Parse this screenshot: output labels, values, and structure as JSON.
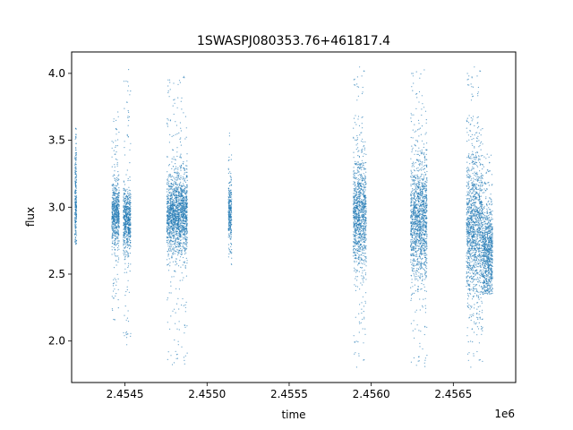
{
  "chart_data": {
    "type": "scatter",
    "title": "1SWASPJ080353.76+461817.4",
    "xlabel": "time",
    "ylabel": "flux",
    "x_offset_label": "1e6",
    "xlim": [
      2454175,
      2456880
    ],
    "ylim": [
      1.69,
      4.16
    ],
    "xticks": [
      2454500,
      2455000,
      2455500,
      2456000,
      2456500
    ],
    "xtick_labels": [
      "2.4545",
      "2.4550",
      "2.4555",
      "2.4560",
      "2.4565"
    ],
    "yticks": [
      2.0,
      2.5,
      3.0,
      3.5,
      4.0
    ],
    "ytick_labels": [
      "2.0",
      "2.5",
      "3.0",
      "3.5",
      "4.0"
    ],
    "grid": false,
    "point_color": "#1f77b4",
    "clusters": [
      {
        "x_start": 2454195,
        "x_end": 2454205,
        "center": 3.05,
        "spread": 0.18,
        "min": 2.72,
        "max": 3.62
      },
      {
        "x_start": 2454420,
        "x_end": 2454465,
        "center": 2.95,
        "spread": 0.12,
        "min": 2.15,
        "max": 3.72
      },
      {
        "x_start": 2454490,
        "x_end": 2454535,
        "center": 2.9,
        "spread": 0.12,
        "min": 1.95,
        "max": 4.03
      },
      {
        "x_start": 2454755,
        "x_end": 2454880,
        "center": 2.95,
        "spread": 0.15,
        "min": 1.82,
        "max": 4.0
      },
      {
        "x_start": 2455130,
        "x_end": 2455150,
        "center": 2.95,
        "spread": 0.12,
        "min": 2.55,
        "max": 3.57
      },
      {
        "x_start": 2455890,
        "x_end": 2455970,
        "center": 2.95,
        "spread": 0.2,
        "min": 1.8,
        "max": 4.05
      },
      {
        "x_start": 2456240,
        "x_end": 2456340,
        "center": 2.9,
        "spread": 0.22,
        "min": 1.8,
        "max": 4.05
      },
      {
        "x_start": 2456580,
        "x_end": 2456680,
        "center": 2.85,
        "spread": 0.28,
        "min": 1.8,
        "max": 4.05
      },
      {
        "x_start": 2456680,
        "x_end": 2456740,
        "center": 2.65,
        "spread": 0.18,
        "min": 2.35,
        "max": 3.4
      }
    ]
  }
}
